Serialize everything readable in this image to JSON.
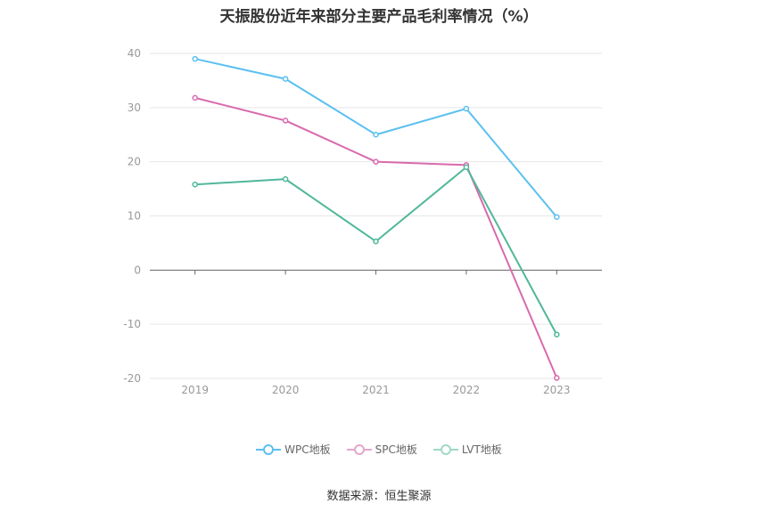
{
  "title": "天振股份近年来部分主要产品毛利率情况（%）",
  "source": "数据来源：恒生聚源",
  "chart_data": {
    "type": "line",
    "title": "天振股份近年来部分主要产品毛利率情况（%）",
    "categories": [
      "2019",
      "2020",
      "2021",
      "2022",
      "2023"
    ],
    "ylim": [
      -20,
      40
    ],
    "yticks": [
      40,
      30,
      20,
      10,
      0,
      -10,
      -20
    ],
    "ytick_labels": [
      "40",
      "30",
      "20",
      "10",
      "0",
      "-10",
      "-20"
    ],
    "grid": true,
    "legend_position": "bottom",
    "series": [
      {
        "name": "WPC地板",
        "color": "#5bc0f0",
        "values": [
          39.0,
          35.3,
          25.0,
          29.8,
          9.8
        ]
      },
      {
        "name": "SPC地板",
        "color": "#d96aad",
        "values": [
          31.8,
          27.6,
          20.0,
          19.4,
          -19.9
        ]
      },
      {
        "name": "LVT地板",
        "color": "#4fb89a",
        "values": [
          15.8,
          16.8,
          5.3,
          19.0,
          -11.9
        ]
      }
    ]
  }
}
